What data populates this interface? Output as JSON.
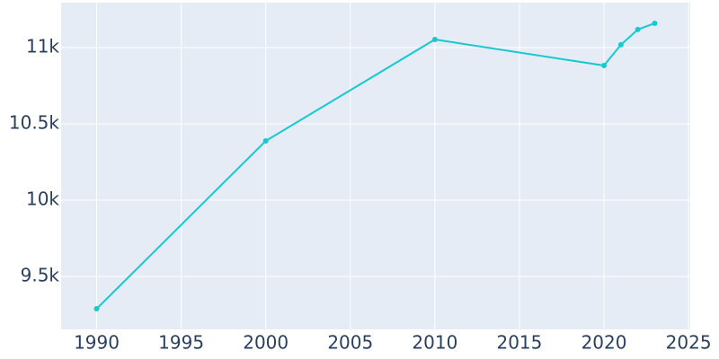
{
  "chart_data": {
    "type": "line",
    "x": [
      1990,
      2000,
      2010,
      2020,
      2021,
      2022,
      2023
    ],
    "series": [
      {
        "color": "#17c9cf",
        "values": [
          9288,
          10388,
          11053,
          10882,
          11018,
          11118,
          11159
        ]
      }
    ],
    "xlim": [
      1987.9,
      2025.1
    ],
    "xticks": [
      1990,
      1995,
      2000,
      2005,
      2010,
      2015,
      2020,
      2025
    ],
    "ylim": [
      9153,
      11294
    ],
    "yticks": [
      {
        "value": 9500,
        "label": "9.5k"
      },
      {
        "value": 10000,
        "label": "10k"
      },
      {
        "value": 10500,
        "label": "10.5k"
      },
      {
        "value": 11000,
        "label": "11k"
      }
    ],
    "grid": true
  }
}
